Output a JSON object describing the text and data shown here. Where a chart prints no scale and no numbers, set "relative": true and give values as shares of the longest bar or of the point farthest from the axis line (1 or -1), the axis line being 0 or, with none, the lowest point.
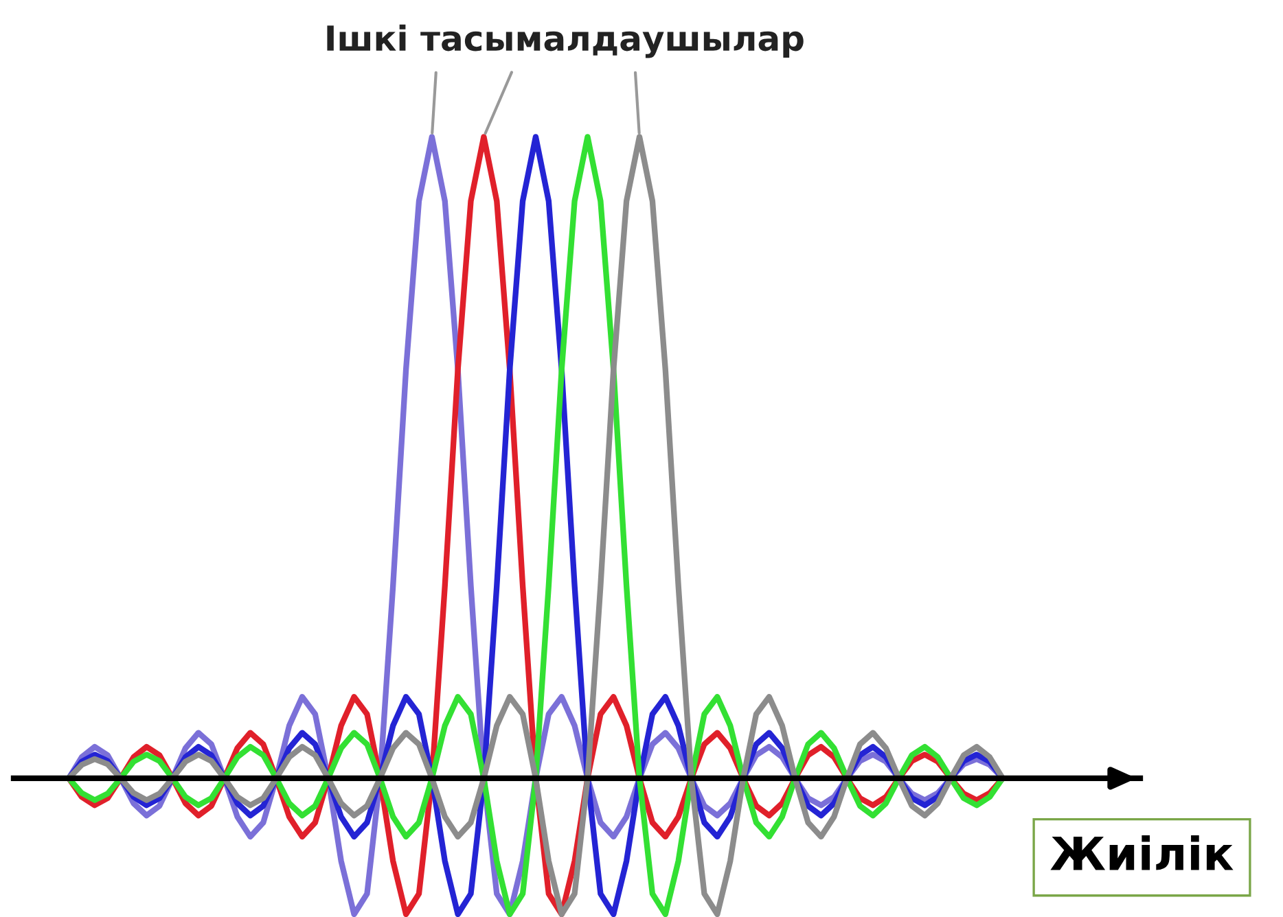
{
  "chart_data": {
    "type": "line",
    "title": "Ішкі тасымалдаушылар",
    "xlabel": "Жиілік",
    "relative": true,
    "marker": "none",
    "line_style": "solid",
    "categories": [
      null,
      null,
      null,
      null,
      null,
      null,
      null,
      null,
      null,
      null,
      null,
      null,
      null,
      null,
      null,
      null,
      null,
      null,
      null,
      null,
      null,
      null,
      null,
      null,
      null,
      null,
      null,
      null,
      null,
      null,
      null,
      null,
      null,
      null,
      null,
      null,
      null,
      null,
      null,
      null,
      null,
      null,
      null,
      null,
      null,
      null,
      null,
      null,
      null,
      null,
      null,
      null,
      null,
      null,
      null,
      null,
      null,
      null,
      null,
      null,
      null,
      null,
      null,
      null,
      null,
      null,
      null,
      null,
      null,
      null,
      null,
      null,
      null
    ],
    "series": [
      {
        "color": "#7b70d8",
        "values": [
          0,
          0.033,
          0.049,
          0.036,
          0,
          -0.039,
          -0.058,
          -0.043,
          0,
          0.047,
          0.071,
          0.053,
          0,
          -0.06,
          -0.091,
          -0.069,
          0,
          0.082,
          0.127,
          0.1,
          0,
          -0.129,
          -0.212,
          -0.18,
          0,
          0.3,
          0.637,
          0.9,
          1,
          0.9,
          0.637,
          0.3,
          0,
          -0.18,
          -0.212,
          -0.129,
          0,
          0.1,
          0.127,
          0.082,
          0,
          -0.069,
          -0.091,
          -0.06,
          0,
          0.053,
          0.071,
          0.047,
          0,
          -0.043,
          -0.058,
          -0.039,
          0,
          0.036,
          0.049,
          0.033,
          0,
          -0.031,
          -0.042,
          -0.029,
          0,
          0.027,
          0.037,
          0.026,
          0,
          -0.024,
          -0.034,
          -0.023,
          0,
          0.022,
          0.03,
          0.021,
          0
        ]
      },
      {
        "color": "#e0202a",
        "values": [
          0,
          -0.029,
          -0.042,
          -0.031,
          0,
          0.033,
          0.049,
          0.036,
          0,
          -0.039,
          -0.058,
          -0.043,
          0,
          0.047,
          0.071,
          0.053,
          0,
          -0.06,
          -0.091,
          -0.069,
          0,
          0.082,
          0.127,
          0.1,
          0,
          -0.129,
          -0.212,
          -0.18,
          0,
          0.3,
          0.637,
          0.9,
          1,
          0.9,
          0.637,
          0.3,
          0,
          -0.18,
          -0.212,
          -0.129,
          0,
          0.1,
          0.127,
          0.082,
          0,
          -0.069,
          -0.091,
          -0.06,
          0,
          0.053,
          0.071,
          0.047,
          0,
          -0.043,
          -0.058,
          -0.039,
          0,
          0.036,
          0.049,
          0.033,
          0,
          -0.031,
          -0.042,
          -0.029,
          0,
          0.027,
          0.037,
          0.026,
          0,
          -0.024,
          -0.034,
          -0.023,
          0
        ]
      },
      {
        "color": "#2424d4",
        "values": [
          0,
          0.026,
          0.037,
          0.027,
          0,
          -0.029,
          -0.042,
          -0.031,
          0,
          0.033,
          0.049,
          0.036,
          0,
          -0.039,
          -0.058,
          -0.043,
          0,
          0.047,
          0.071,
          0.053,
          0,
          -0.06,
          -0.091,
          -0.069,
          0,
          0.082,
          0.127,
          0.1,
          0,
          -0.129,
          -0.212,
          -0.18,
          0,
          0.3,
          0.637,
          0.9,
          1,
          0.9,
          0.637,
          0.3,
          0,
          -0.18,
          -0.212,
          -0.129,
          0,
          0.1,
          0.127,
          0.082,
          0,
          -0.069,
          -0.091,
          -0.06,
          0,
          0.053,
          0.071,
          0.047,
          0,
          -0.043,
          -0.058,
          -0.039,
          0,
          0.036,
          0.049,
          0.033,
          0,
          -0.031,
          -0.042,
          -0.029,
          0,
          0.027,
          0.037,
          0.026,
          0
        ]
      },
      {
        "color": "#33e033",
        "values": [
          0,
          -0.023,
          -0.034,
          -0.024,
          0,
          0.026,
          0.037,
          0.027,
          0,
          -0.029,
          -0.042,
          -0.031,
          0,
          0.033,
          0.049,
          0.036,
          0,
          -0.039,
          -0.058,
          -0.043,
          0,
          0.047,
          0.071,
          0.053,
          0,
          -0.06,
          -0.091,
          -0.069,
          0,
          0.082,
          0.127,
          0.1,
          0,
          -0.129,
          -0.212,
          -0.18,
          0,
          0.3,
          0.637,
          0.9,
          1,
          0.9,
          0.637,
          0.3,
          0,
          -0.18,
          -0.212,
          -0.129,
          0,
          0.1,
          0.127,
          0.082,
          0,
          -0.069,
          -0.091,
          -0.06,
          0,
          0.053,
          0.071,
          0.047,
          0,
          -0.043,
          -0.058,
          -0.039,
          0,
          0.036,
          0.049,
          0.033,
          0,
          -0.031,
          -0.042,
          -0.029,
          0
        ]
      },
      {
        "color": "#8c8c8c",
        "values": [
          0,
          0.021,
          0.03,
          0.022,
          0,
          -0.023,
          -0.034,
          -0.024,
          0,
          0.026,
          0.037,
          0.027,
          0,
          -0.029,
          -0.042,
          -0.031,
          0,
          0.033,
          0.049,
          0.036,
          0,
          -0.039,
          -0.058,
          -0.043,
          0,
          0.047,
          0.071,
          0.053,
          0,
          -0.06,
          -0.091,
          -0.069,
          0,
          0.082,
          0.127,
          0.1,
          0,
          -0.129,
          -0.212,
          -0.18,
          0,
          0.3,
          0.637,
          0.9,
          1,
          0.9,
          0.637,
          0.3,
          0,
          -0.18,
          -0.212,
          -0.129,
          0,
          0.1,
          0.127,
          0.082,
          0,
          -0.069,
          -0.091,
          -0.06,
          0,
          0.053,
          0.071,
          0.047,
          0,
          -0.043,
          -0.058,
          -0.039,
          0,
          0.036,
          0.049,
          0.033,
          0
        ]
      }
    ]
  }
}
